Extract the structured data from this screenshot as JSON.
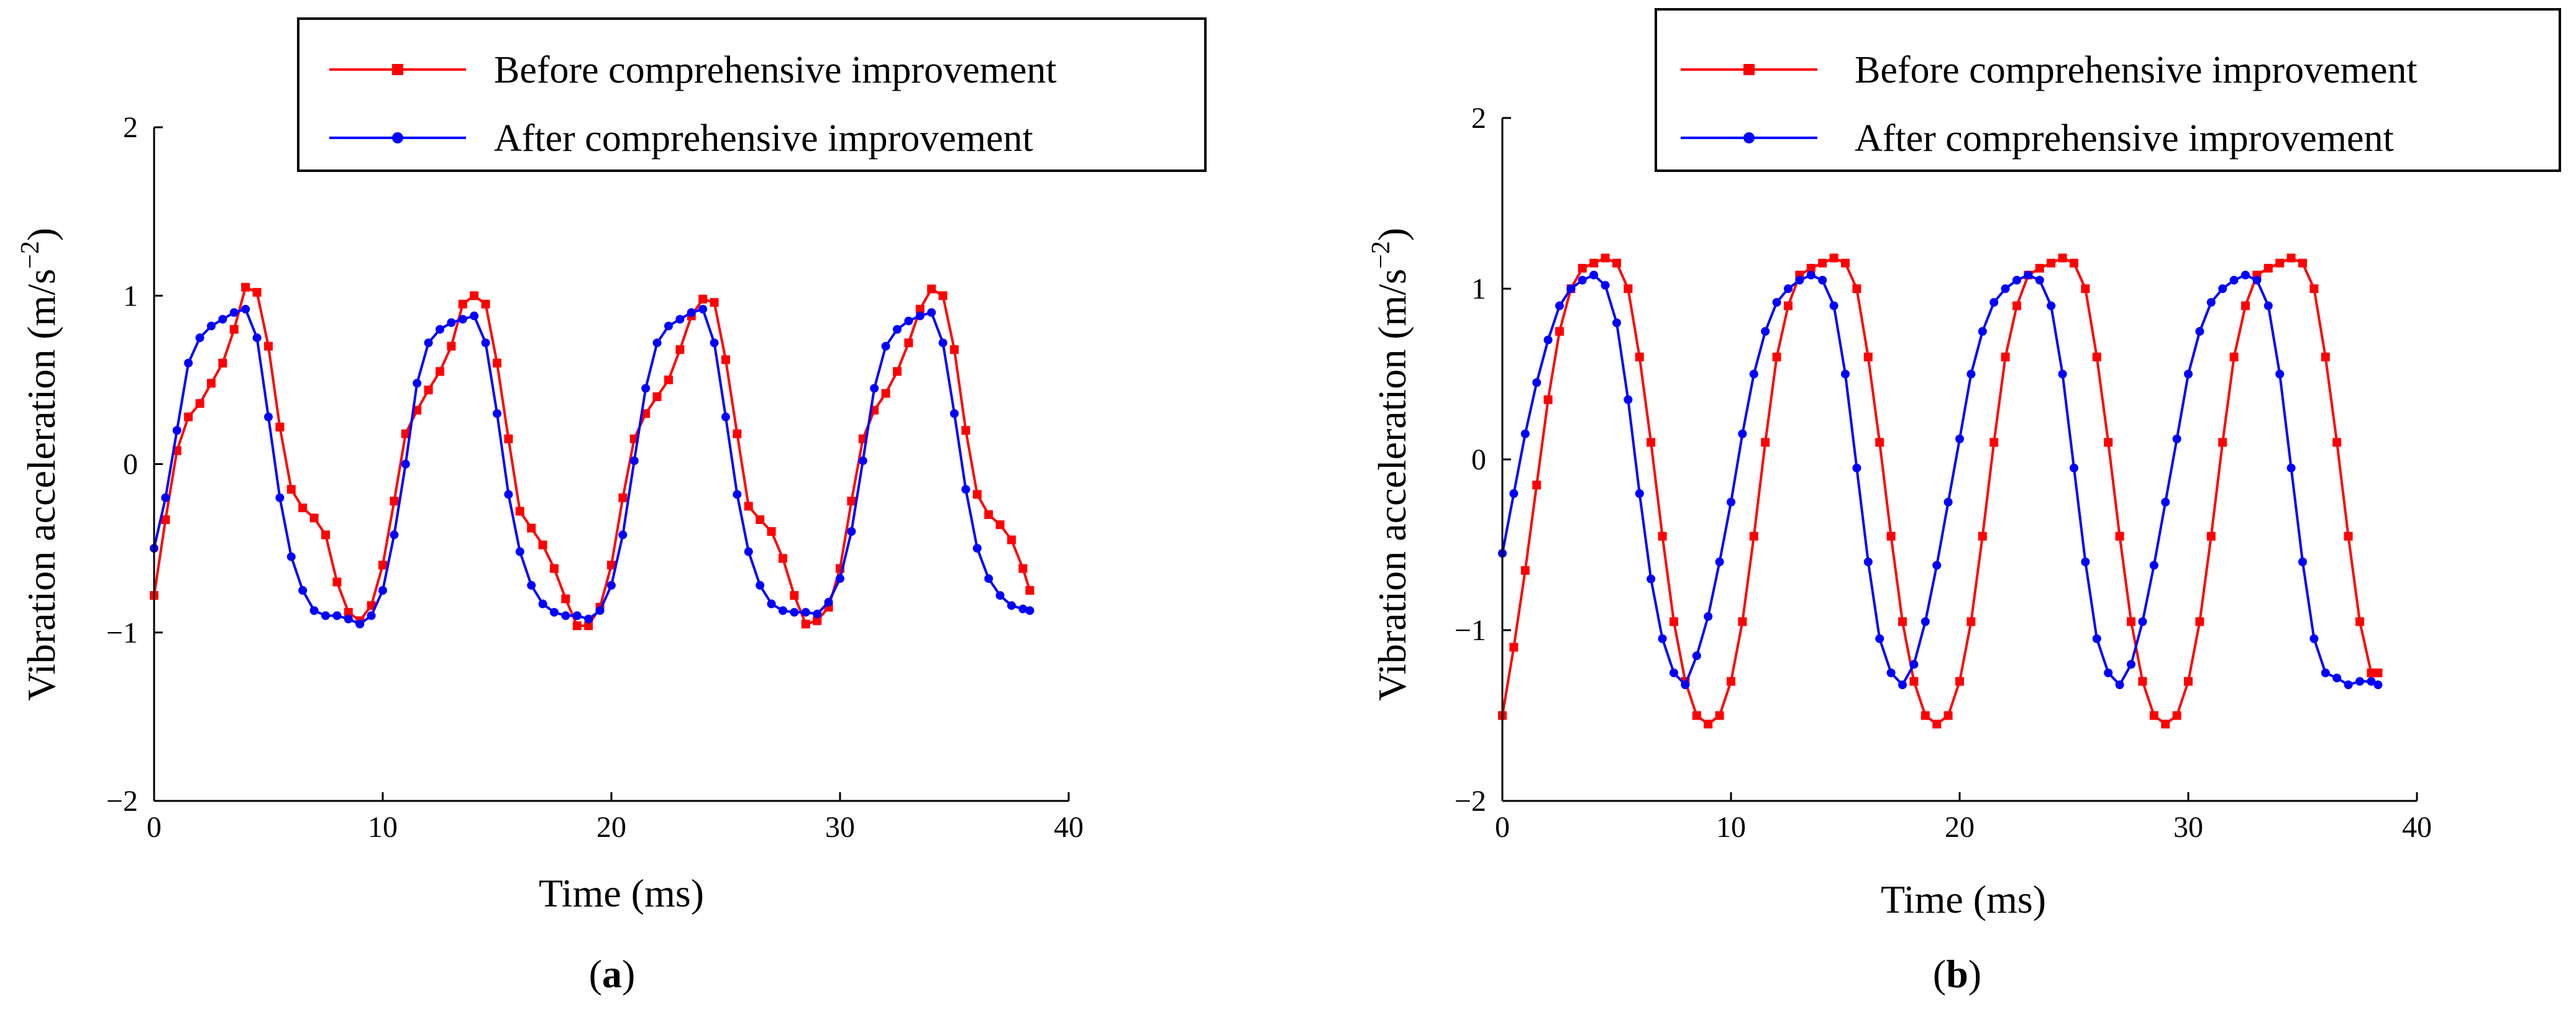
{
  "chart_data": [
    {
      "type": "line",
      "panel_label": "a",
      "xlabel": "Time (ms)",
      "ylabel": "Vibration acceleration (m/s",
      "ylabel_sup": "−2",
      "ylabel_close": ")",
      "xlim": [
        0,
        40
      ],
      "ylim": [
        -2,
        2
      ],
      "xticks": [
        "0",
        "10",
        "20",
        "30",
        "40"
      ],
      "yticks": [
        "−2",
        "−1",
        "0",
        "1",
        "2"
      ],
      "legend_position": "top-right",
      "series": [
        {
          "name": "Before comprehensive improvement",
          "color": "#ff0000",
          "marker": "square",
          "x": [
            0,
            0.5,
            1,
            1.5,
            2,
            2.5,
            3,
            3.5,
            4,
            4.5,
            5,
            5.5,
            6,
            6.5,
            7,
            7.5,
            8,
            8.5,
            9,
            9.5,
            10,
            10.5,
            11,
            11.5,
            12,
            12.5,
            13,
            13.5,
            14,
            14.5,
            15,
            15.5,
            16,
            16.5,
            17,
            17.5,
            18,
            18.5,
            19,
            19.5,
            20,
            20.5,
            21,
            21.5,
            22,
            22.5,
            23,
            23.5,
            24,
            24.5,
            25,
            25.5,
            26,
            26.5,
            27,
            27.5,
            28,
            28.5,
            29,
            29.5,
            30,
            30.5,
            31,
            31.5,
            32,
            32.5,
            33,
            33.5,
            34,
            34.5,
            35,
            35.5,
            36,
            36.5,
            37,
            37.5,
            38,
            38.3
          ],
          "y": [
            -0.78,
            -0.33,
            0.08,
            0.28,
            0.36,
            0.48,
            0.6,
            0.8,
            1.05,
            1.02,
            0.7,
            0.22,
            -0.15,
            -0.26,
            -0.32,
            -0.42,
            -0.7,
            -0.88,
            -0.93,
            -0.84,
            -0.6,
            -0.22,
            0.18,
            0.32,
            0.44,
            0.55,
            0.7,
            0.95,
            1.0,
            0.95,
            0.6,
            0.15,
            -0.28,
            -0.38,
            -0.48,
            -0.62,
            -0.8,
            -0.96,
            -0.96,
            -0.85,
            -0.6,
            -0.2,
            0.15,
            0.3,
            0.4,
            0.5,
            0.68,
            0.88,
            0.98,
            0.96,
            0.62,
            0.18,
            -0.25,
            -0.33,
            -0.4,
            -0.56,
            -0.78,
            -0.95,
            -0.93,
            -0.85,
            -0.62,
            -0.22,
            0.15,
            0.32,
            0.42,
            0.55,
            0.72,
            0.92,
            1.04,
            1.0,
            0.68,
            0.2,
            -0.18,
            -0.3,
            -0.36,
            -0.45,
            -0.62,
            -0.75
          ]
        },
        {
          "name": "After comprehensive improvement",
          "color": "#0000ff",
          "marker": "circle",
          "x": [
            0,
            0.5,
            1,
            1.5,
            2,
            2.5,
            3,
            3.5,
            4,
            4.5,
            5,
            5.5,
            6,
            6.5,
            7,
            7.5,
            8,
            8.5,
            9,
            9.5,
            10,
            10.5,
            11,
            11.5,
            12,
            12.5,
            13,
            13.5,
            14,
            14.5,
            15,
            15.5,
            16,
            16.5,
            17,
            17.5,
            18,
            18.5,
            19,
            19.5,
            20,
            20.5,
            21,
            21.5,
            22,
            22.5,
            23,
            23.5,
            24,
            24.5,
            25,
            25.5,
            26,
            26.5,
            27,
            27.5,
            28,
            28.5,
            29,
            29.5,
            30,
            30.5,
            31,
            31.5,
            32,
            32.5,
            33,
            33.5,
            34,
            34.5,
            35,
            35.5,
            36,
            36.5,
            37,
            37.5,
            38,
            38.3
          ],
          "y": [
            -0.5,
            -0.2,
            0.2,
            0.6,
            0.75,
            0.82,
            0.86,
            0.9,
            0.92,
            0.75,
            0.28,
            -0.2,
            -0.55,
            -0.75,
            -0.87,
            -0.9,
            -0.9,
            -0.92,
            -0.95,
            -0.9,
            -0.75,
            -0.42,
            0.0,
            0.48,
            0.72,
            0.8,
            0.84,
            0.86,
            0.88,
            0.72,
            0.3,
            -0.18,
            -0.52,
            -0.72,
            -0.83,
            -0.88,
            -0.9,
            -0.9,
            -0.92,
            -0.87,
            -0.72,
            -0.42,
            0.02,
            0.45,
            0.72,
            0.82,
            0.86,
            0.9,
            0.92,
            0.72,
            0.28,
            -0.18,
            -0.52,
            -0.72,
            -0.83,
            -0.87,
            -0.88,
            -0.88,
            -0.89,
            -0.82,
            -0.68,
            -0.4,
            0.02,
            0.45,
            0.7,
            0.8,
            0.85,
            0.88,
            0.9,
            0.72,
            0.3,
            -0.15,
            -0.5,
            -0.68,
            -0.78,
            -0.84,
            -0.86,
            -0.87
          ]
        }
      ]
    },
    {
      "type": "line",
      "panel_label": "b",
      "xlabel": "Time (ms)",
      "ylabel": "Vibration acceleration (m/s",
      "ylabel_sup": "−2",
      "ylabel_close": ")",
      "xlim": [
        0,
        40
      ],
      "ylim": [
        -2,
        2
      ],
      "xticks": [
        "0",
        "10",
        "20",
        "30",
        "40"
      ],
      "yticks": [
        "−2",
        "−1",
        "0",
        "1",
        "2"
      ],
      "legend_position": "top-right",
      "series": [
        {
          "name": "Before comprehensive improvement",
          "color": "#ff0000",
          "marker": "square",
          "x": [
            0,
            0.5,
            1,
            1.5,
            2,
            2.5,
            3,
            3.5,
            4,
            4.5,
            5,
            5.5,
            6,
            6.5,
            7,
            7.5,
            8,
            8.5,
            9,
            9.5,
            10,
            10.5,
            11,
            11.5,
            12,
            12.5,
            13,
            13.5,
            14,
            14.5,
            15,
            15.5,
            16,
            16.5,
            17,
            17.5,
            18,
            18.5,
            19,
            19.5,
            20,
            20.5,
            21,
            21.5,
            22,
            22.5,
            23,
            23.5,
            24,
            24.5,
            25,
            25.5,
            26,
            26.5,
            27,
            27.5,
            28,
            28.5,
            29,
            29.5,
            30,
            30.5,
            31,
            31.5,
            32,
            32.5,
            33,
            33.5,
            34,
            34.5,
            35,
            35.5,
            36,
            36.5,
            37,
            37.5,
            38,
            38.3
          ],
          "y": [
            -1.5,
            -1.1,
            -0.65,
            -0.15,
            0.35,
            0.75,
            1.0,
            1.12,
            1.15,
            1.18,
            1.15,
            1.0,
            0.6,
            0.1,
            -0.45,
            -0.95,
            -1.3,
            -1.5,
            -1.55,
            -1.5,
            -1.3,
            -0.95,
            -0.45,
            0.1,
            0.6,
            0.9,
            1.08,
            1.12,
            1.15,
            1.18,
            1.15,
            1.0,
            0.6,
            0.1,
            -0.45,
            -0.95,
            -1.3,
            -1.5,
            -1.55,
            -1.5,
            -1.3,
            -0.95,
            -0.45,
            0.1,
            0.6,
            0.9,
            1.08,
            1.12,
            1.15,
            1.18,
            1.15,
            1.0,
            0.6,
            0.1,
            -0.45,
            -0.95,
            -1.3,
            -1.5,
            -1.55,
            -1.5,
            -1.3,
            -0.95,
            -0.45,
            0.1,
            0.6,
            0.9,
            1.08,
            1.12,
            1.15,
            1.18,
            1.15,
            1.0,
            0.6,
            0.1,
            -0.45,
            -0.95,
            -1.25,
            -1.25
          ]
        },
        {
          "name": "After comprehensive improvement",
          "color": "#0000ff",
          "marker": "circle",
          "x": [
            0,
            0.5,
            1,
            1.5,
            2,
            2.5,
            3,
            3.5,
            4,
            4.5,
            5,
            5.5,
            6,
            6.5,
            7,
            7.5,
            8,
            8.5,
            9,
            9.5,
            10,
            10.5,
            11,
            11.5,
            12,
            12.5,
            13,
            13.5,
            14,
            14.5,
            15,
            15.5,
            16,
            16.5,
            17,
            17.5,
            18,
            18.5,
            19,
            19.5,
            20,
            20.5,
            21,
            21.5,
            22,
            22.5,
            23,
            23.5,
            24,
            24.5,
            25,
            25.5,
            26,
            26.5,
            27,
            27.5,
            28,
            28.5,
            29,
            29.5,
            30,
            30.5,
            31,
            31.5,
            32,
            32.5,
            33,
            33.5,
            34,
            34.5,
            35,
            35.5,
            36,
            36.5,
            37,
            37.5,
            38,
            38.3
          ],
          "y": [
            -0.55,
            -0.2,
            0.15,
            0.45,
            0.7,
            0.9,
            1.0,
            1.05,
            1.08,
            1.02,
            0.8,
            0.35,
            -0.2,
            -0.7,
            -1.05,
            -1.25,
            -1.32,
            -1.15,
            -0.92,
            -0.6,
            -0.25,
            0.15,
            0.5,
            0.75,
            0.92,
            1.0,
            1.05,
            1.08,
            1.05,
            0.9,
            0.5,
            -0.05,
            -0.6,
            -1.05,
            -1.25,
            -1.32,
            -1.2,
            -0.95,
            -0.62,
            -0.25,
            0.12,
            0.5,
            0.75,
            0.92,
            1.0,
            1.05,
            1.08,
            1.05,
            0.9,
            0.5,
            -0.05,
            -0.6,
            -1.05,
            -1.25,
            -1.32,
            -1.2,
            -0.95,
            -0.62,
            -0.25,
            0.12,
            0.5,
            0.75,
            0.92,
            1.0,
            1.05,
            1.08,
            1.05,
            0.9,
            0.5,
            -0.05,
            -0.6,
            -1.05,
            -1.25,
            -1.28,
            -1.32,
            -1.3,
            -1.3,
            -1.32
          ]
        }
      ]
    }
  ]
}
